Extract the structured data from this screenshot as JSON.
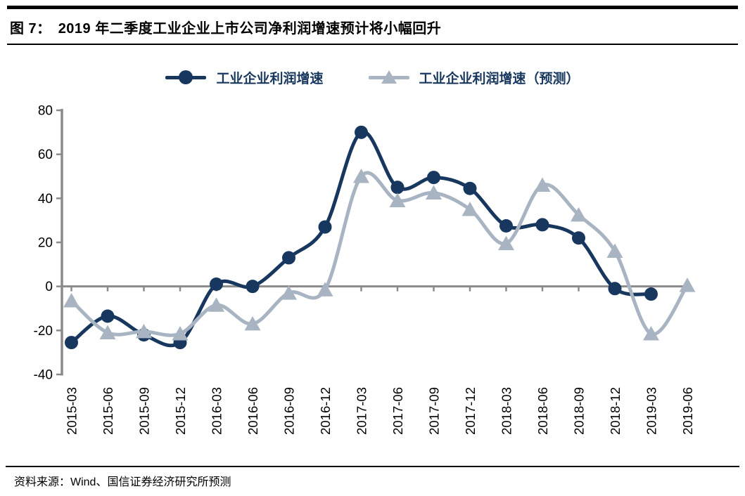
{
  "header": {
    "figure_label": "图 7：",
    "title": "2019 年二季度工业企业上市公司净利润增速预计将小幅回升"
  },
  "legend": [
    {
      "label": "工业企业利润增速",
      "marker": "circle",
      "color": "#17375E"
    },
    {
      "label": "工业企业利润增速（预测）",
      "marker": "triangle",
      "color": "#A9B4C3"
    }
  ],
  "source": {
    "text": "资料来源：Wind、国信证券经济研究所预测"
  },
  "chart_data": {
    "type": "line",
    "smoothed": true,
    "legend_position": "top",
    "grid": false,
    "axis_color": "#8A8A8A",
    "categories": [
      "2015-03",
      "2015-06",
      "2015-09",
      "2015-12",
      "2016-03",
      "2016-06",
      "2016-09",
      "2016-12",
      "2017-03",
      "2017-06",
      "2017-09",
      "2017-12",
      "2018-03",
      "2018-06",
      "2018-09",
      "2018-12",
      "2019-03",
      "2019-06"
    ],
    "series": [
      {
        "name": "工业企业利润增速",
        "marker": "circle",
        "color": "#17375E",
        "values": [
          -25.5,
          -13.5,
          -22,
          -25.5,
          1,
          0,
          13,
          27,
          70,
          45,
          49.5,
          44.5,
          27.5,
          28,
          22,
          -1,
          -3.5,
          null
        ]
      },
      {
        "name": "工业企业利润增速（预测）",
        "marker": "triangle",
        "color": "#A9B4C3",
        "values": [
          -6.5,
          -21,
          -20.5,
          -21.5,
          -8.5,
          -17,
          -3,
          -1.5,
          50,
          39,
          42.5,
          35,
          19.5,
          46,
          32.5,
          16,
          -21.5,
          0.5
        ]
      }
    ],
    "ylim": [
      -40,
      80
    ],
    "yticks": [
      80,
      60,
      40,
      20,
      0,
      -20,
      -40
    ],
    "xlabel": "",
    "ylabel": ""
  }
}
